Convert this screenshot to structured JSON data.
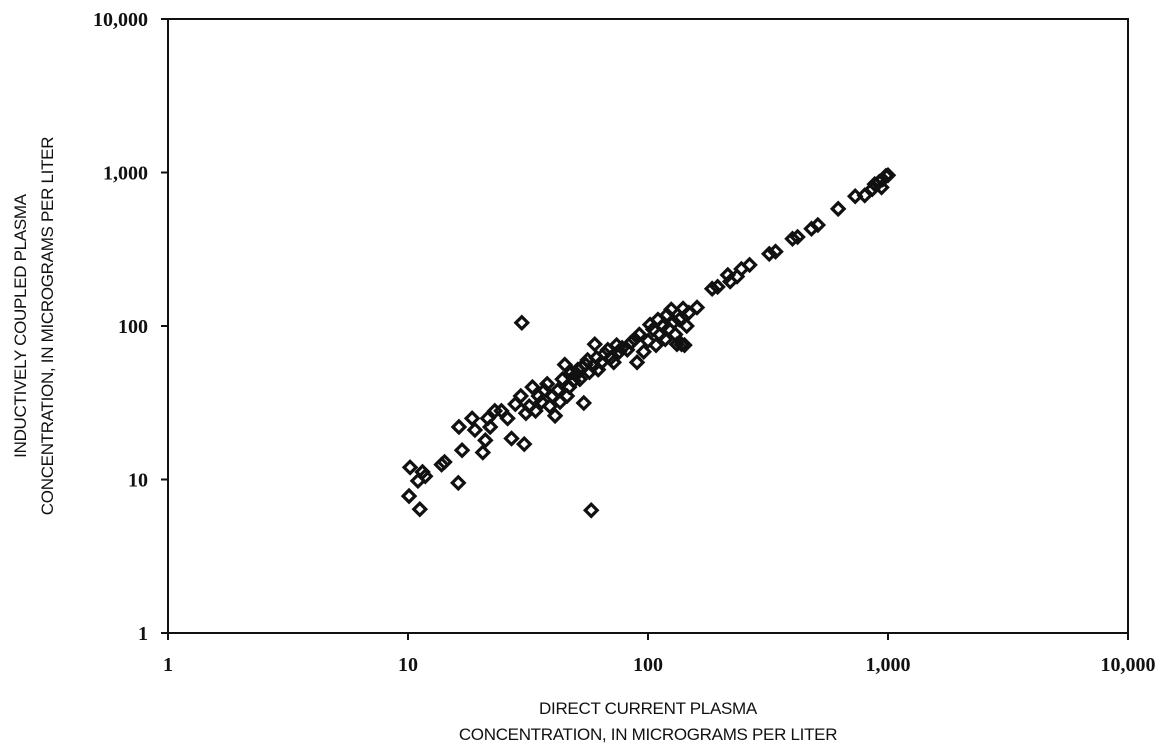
{
  "chart_data": {
    "type": "scatter",
    "title": "",
    "xlabel_lines": [
      "DIRECT CURRENT PLASMA",
      "CONCENTRATION, IN MICROGRAMS PER LITER"
    ],
    "ylabel_lines": [
      "INDUCTIVELY COUPLED PLASMA",
      "CONCENTRATION, IN MICROGRAMS PER LITER"
    ],
    "x_scale": "log",
    "y_scale": "log",
    "xlim": [
      1,
      10000
    ],
    "ylim": [
      1,
      10000
    ],
    "grid": false,
    "legend": "none",
    "x_ticks": [
      {
        "value": 1,
        "label": "1"
      },
      {
        "value": 10,
        "label": "10"
      },
      {
        "value": 100,
        "label": "100"
      },
      {
        "value": 1000,
        "label": "1,000"
      },
      {
        "value": 10000,
        "label": "10,000"
      }
    ],
    "y_ticks": [
      {
        "value": 1,
        "label": "1"
      },
      {
        "value": 10,
        "label": "10"
      },
      {
        "value": 100,
        "label": "100"
      },
      {
        "value": 1000,
        "label": "1,000"
      },
      {
        "value": 10000,
        "label": "10,000"
      }
    ],
    "marker_color": "#111111",
    "series": [
      {
        "marker": "diamond",
        "points": [
          [
            10.2,
            12.0
          ],
          [
            10.1,
            7.8
          ],
          [
            11.2,
            6.4
          ],
          [
            11.0,
            9.8
          ],
          [
            11.5,
            11.2
          ],
          [
            11.8,
            10.5
          ],
          [
            13.8,
            12.5
          ],
          [
            14.2,
            13.0
          ],
          [
            16.2,
            9.5
          ],
          [
            16.3,
            22.0
          ],
          [
            16.8,
            15.5
          ],
          [
            18.5,
            25.0
          ],
          [
            19.0,
            21.0
          ],
          [
            20.5,
            15.0
          ],
          [
            21.0,
            18.0
          ],
          [
            21.5,
            25.0
          ],
          [
            22.0,
            22.0
          ],
          [
            23.0,
            28.0
          ],
          [
            24.5,
            28.0
          ],
          [
            26.0,
            25.0
          ],
          [
            27.0,
            18.5
          ],
          [
            28.0,
            31.0
          ],
          [
            29.5,
            35.0
          ],
          [
            29.8,
            105.0
          ],
          [
            30.5,
            17.0
          ],
          [
            31.0,
            27.0
          ],
          [
            32.0,
            30.0
          ],
          [
            33.0,
            40.0
          ],
          [
            34.0,
            28.0
          ],
          [
            35.0,
            35.0
          ],
          [
            36.0,
            32.0
          ],
          [
            37.0,
            38.0
          ],
          [
            38.0,
            42.0
          ],
          [
            39.0,
            30.0
          ],
          [
            40.0,
            35.0
          ],
          [
            41.0,
            26.0
          ],
          [
            42.0,
            38.0
          ],
          [
            43.0,
            32.0
          ],
          [
            44.0,
            45.0
          ],
          [
            45.0,
            56.0
          ],
          [
            46.0,
            35.0
          ],
          [
            47.0,
            40.0
          ],
          [
            48.0,
            50.0
          ],
          [
            49.0,
            44.0
          ],
          [
            50.0,
            48.0
          ],
          [
            51.0,
            52.0
          ],
          [
            52.0,
            45.0
          ],
          [
            53.0,
            54.0
          ],
          [
            54.0,
            31.5
          ],
          [
            55.0,
            56.0
          ],
          [
            56.0,
            60.0
          ],
          [
            57.0,
            50.0
          ],
          [
            58.0,
            6.3
          ],
          [
            59.0,
            55.0
          ],
          [
            60.0,
            76.0
          ],
          [
            61.0,
            62.0
          ],
          [
            62.0,
            52.0
          ],
          [
            64.0,
            58.0
          ],
          [
            66.0,
            66.0
          ],
          [
            68.0,
            70.0
          ],
          [
            70.0,
            62.0
          ],
          [
            72.0,
            58.0
          ],
          [
            74.0,
            75.0
          ],
          [
            76.0,
            68.0
          ],
          [
            78.0,
            72.0
          ],
          [
            82.0,
            70.0
          ],
          [
            85.0,
            78.0
          ],
          [
            88.0,
            82.0
          ],
          [
            90.0,
            58.0
          ],
          [
            92.0,
            88.0
          ],
          [
            96.0,
            68.0
          ],
          [
            100.0,
            80.0
          ],
          [
            102.0,
            102.0
          ],
          [
            105.0,
            95.0
          ],
          [
            108.0,
            75.0
          ],
          [
            110.0,
            110.0
          ],
          [
            112.0,
            88.0
          ],
          [
            115.0,
            100.0
          ],
          [
            118.0,
            82.0
          ],
          [
            120.0,
            118.0
          ],
          [
            122.0,
            96.0
          ],
          [
            125.0,
            128.0
          ],
          [
            128.0,
            106.0
          ],
          [
            130.0,
            88.0
          ],
          [
            132.0,
            76.0
          ],
          [
            135.0,
            110.0
          ],
          [
            138.0,
            76.0
          ],
          [
            140.0,
            130.0
          ],
          [
            142.0,
            75.0
          ],
          [
            145.0,
            100.0
          ],
          [
            148.0,
            122.0
          ],
          [
            160.0,
            132.0
          ],
          [
            185.0,
            175.0
          ],
          [
            195.0,
            180.0
          ],
          [
            215.0,
            215.0
          ],
          [
            220.0,
            195.0
          ],
          [
            235.0,
            210.0
          ],
          [
            245.0,
            235.0
          ],
          [
            265.0,
            250.0
          ],
          [
            320.0,
            295.0
          ],
          [
            340.0,
            305.0
          ],
          [
            400.0,
            370.0
          ],
          [
            420.0,
            380.0
          ],
          [
            480.0,
            430.0
          ],
          [
            510.0,
            455.0
          ],
          [
            620.0,
            580.0
          ],
          [
            730.0,
            700.0
          ],
          [
            800.0,
            710.0
          ],
          [
            860.0,
            780.0
          ],
          [
            880.0,
            840.0
          ],
          [
            920.0,
            870.0
          ],
          [
            950.0,
            900.0
          ],
          [
            980.0,
            950.0
          ],
          [
            1000.0,
            960.0
          ],
          [
            940.0,
            800.0
          ]
        ]
      }
    ]
  }
}
